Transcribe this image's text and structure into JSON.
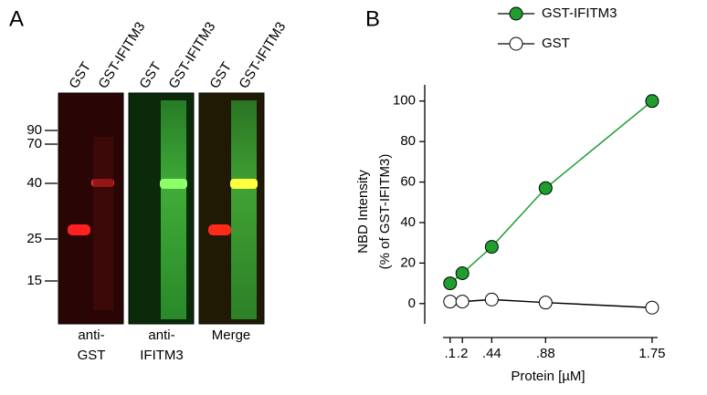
{
  "panel_a": {
    "letter": "A",
    "lanes": [
      "GST",
      "GST-IFITM3",
      "GST",
      "GST-IFITM3",
      "GST",
      "GST-IFITM3"
    ],
    "markers": [
      "90",
      "70",
      "40",
      "25",
      "15"
    ],
    "blot_labels": [
      [
        "anti-",
        "GST"
      ],
      [
        "anti-",
        "IFITM3"
      ],
      [
        "Merge"
      ]
    ]
  },
  "chart_data": {
    "type": "line",
    "letter": "B",
    "x_label": "Protein [µM]",
    "y_label": [
      "NBD Intensity",
      "(% of GST-IFITM3)"
    ],
    "x": [
      0.1,
      0.2,
      0.44,
      0.88,
      1.75
    ],
    "series": [
      {
        "name": "GST-IFITM3",
        "color": "#1e9e2e",
        "values": [
          10,
          15,
          28,
          57,
          100
        ]
      },
      {
        "name": "GST",
        "color": "#ffffff",
        "values": [
          1,
          1,
          2,
          0.5,
          -2
        ]
      }
    ],
    "xlim": [
      -0.07,
      1.87
    ],
    "ylim": [
      -10,
      108
    ],
    "xticks": [
      {
        "value": 0.1,
        "label": ".1"
      },
      {
        "value": 0.2,
        "label": ".2"
      },
      {
        "value": 0.44,
        "label": ".44"
      },
      {
        "value": 0.88,
        "label": ".88"
      },
      1.75
    ],
    "yticks": [
      0,
      20,
      40,
      60,
      80,
      100
    ]
  }
}
